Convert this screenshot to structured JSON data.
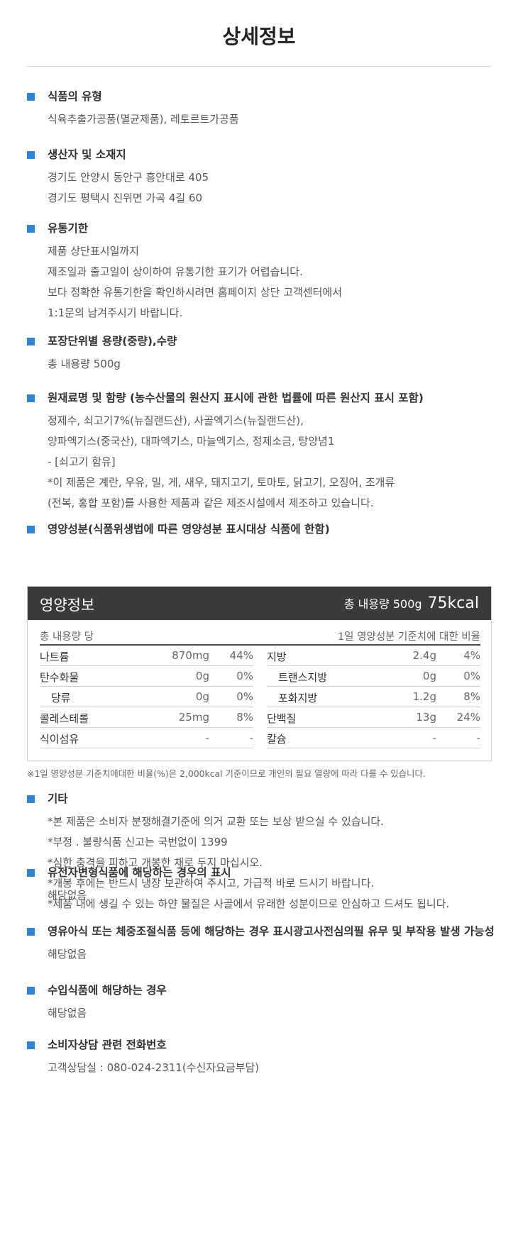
{
  "title": "상세정보",
  "sections": [
    {
      "title": "식품의 유형",
      "lines": [
        "식육추출가공품(멸균제품), 레토르트가공품"
      ]
    },
    {
      "title": "생산자 및 소재지",
      "lines": [
        "경기도 안양시 동안구 흥안대로 405",
        "경기도 평택시 진위면 가곡 4길 60"
      ]
    },
    {
      "title": "유통기한",
      "lines": [
        "제품 상단표시일까지",
        "제조일과 출고일이 상이하여 유통기한 표기가 어렵습니다.",
        "보다 정확한 유통기한을 확인하시려면 홈페이지 상단 고객센터에서",
        "1:1문의 남겨주시기 바랍니다."
      ]
    },
    {
      "title": "포장단위별 용량(중량),수량",
      "lines": [
        "총 내용량 500g"
      ]
    },
    {
      "title": "원재료명 및 함량 (농수산물의 원산지 표시에 관한 법률에 따른 원산지 표시 포함)",
      "lines": [
        "정제수, 쇠고기7%(뉴질랜드산), 사골엑기스(뉴질랜드산),",
        "양파엑기스(중국산), 대파엑기스, 마늘엑기스, 정제소금, 탕양념1",
        "- [쇠고기 함유]",
        "*이 제품은 계란, 우유, 밀, 게, 새우, 돼지고기, 토마토, 닭고기, 오징어, 조개류",
        "(전복, 홍합 포함)를 사용한 제품과 같은 제조시설에서 제조하고 있습니다."
      ]
    },
    {
      "title": "영양성분(식품위생법에 따른 영양성분 표시대상 식품에 한함)",
      "lines": []
    },
    {
      "title": "기타",
      "lines": [
        "*본 제품은 소비자 분쟁해결기준에 의거 교환 또는 보상 받으실 수 있습니다.",
        "*부정 . 불량식품 신고는 국번없이 1399",
        "*심한 충격을 피하고 개봉한 채로 두지 마십시오.",
        "*개봉 후에는 반드시 냉장 보관하여 주시고, 가급적 바로 드시기 바랍니다.",
        "*제품 내에 생길 수 있는 하얀 물질은 사골에서 유래한 성분이므로 안심하고 드셔도 됩니다."
      ]
    },
    {
      "title": "유전자변형식품에 해당하는 경우의 표시",
      "lines": [
        "해당없음"
      ]
    },
    {
      "title": "영유아식 또는 체중조절식품 등에 해당하는 경우 표시광고사전심의필 유무 및 부작용 발생 가능성",
      "lines": [
        "해당없음"
      ]
    },
    {
      "title": "수입식품에 해당하는 경우",
      "lines": [
        "해당없음"
      ]
    },
    {
      "title": "소비자상담 관련 전화번호",
      "lines": [
        "고객상담실 : 080-024-2311(수신자요금부담)"
      ]
    }
  ],
  "nutrition": {
    "label": "영양정보",
    "total": "총 내용량 500g",
    "kcal": "75kcal",
    "per": "총 내용량 당",
    "daily_ref": "1일 영양성분 기준치에 대한 비율",
    "left_rows": [
      {
        "name": "나트륨",
        "amount": "870mg",
        "pct": "44%",
        "sub": false
      },
      {
        "name": "탄수화물",
        "amount": "0g",
        "pct": "0%",
        "sub": false
      },
      {
        "name": "당류",
        "amount": "0g",
        "pct": "0%",
        "sub": true
      },
      {
        "name": "콜레스테롤",
        "amount": "25mg",
        "pct": "8%",
        "sub": false
      },
      {
        "name": "식이섬유",
        "amount": "-",
        "pct": "-",
        "sub": false
      }
    ],
    "right_rows": [
      {
        "name": "지방",
        "amount": "2.4g",
        "pct": "4%",
        "sub": false
      },
      {
        "name": "트랜스지방",
        "amount": "0g",
        "pct": "0%",
        "sub": true
      },
      {
        "name": "포화지방",
        "amount": "1.2g",
        "pct": "8%",
        "sub": true
      },
      {
        "name": "단백질",
        "amount": "13g",
        "pct": "24%",
        "sub": false
      },
      {
        "name": "칼슘",
        "amount": "-",
        "pct": "-",
        "sub": false
      }
    ],
    "note": "※1일 영양성분 기준치에대한 비율(%)은 2,000kcal 기준이므로 개인의 필요 열량에 따라 다를 수 있습니다."
  }
}
